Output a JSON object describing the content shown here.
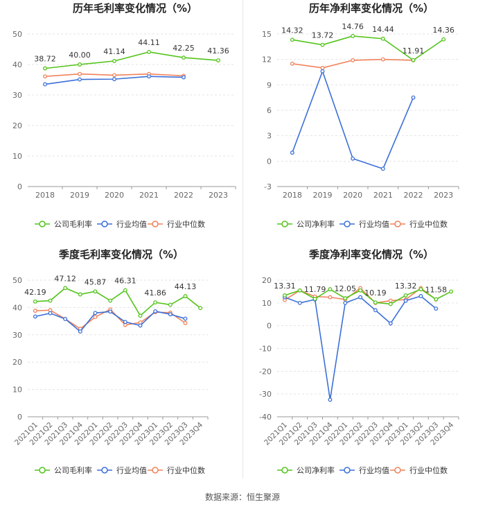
{
  "colors": {
    "company": "#52c41a",
    "industry_avg": "#3b6fd8",
    "industry_median": "#f0825a",
    "grid": "#e3e3e3",
    "axis_text": "#666666"
  },
  "footer": {
    "source": "数据来源：恒生聚源"
  },
  "chart_data": [
    {
      "type": "line",
      "title": "历年毛利率变化情况（%）",
      "categories": [
        "2018",
        "2019",
        "2020",
        "2021",
        "2022",
        "2023"
      ],
      "rotate_x": false,
      "ylim": [
        0,
        50
      ],
      "yticks": [
        0,
        10,
        20,
        30,
        40,
        50
      ],
      "series": [
        {
          "name": "公司毛利率",
          "key": "company",
          "values": [
            38.72,
            40.0,
            41.14,
            44.11,
            42.25,
            41.36
          ]
        },
        {
          "name": "行业均值",
          "key": "industry_avg",
          "values": [
            33.5,
            35.1,
            35.2,
            36.1,
            35.8,
            null
          ]
        },
        {
          "name": "行业中位数",
          "key": "industry_median",
          "values": [
            36.1,
            36.9,
            36.5,
            36.9,
            36.3,
            null
          ]
        }
      ],
      "data_labels": [
        "38.72",
        "40.00",
        "41.14",
        "44.11",
        "42.25",
        "41.36"
      ],
      "legend": [
        "公司毛利率",
        "行业均值",
        "行业中位数"
      ]
    },
    {
      "type": "line",
      "title": "历年净利率变化情况（%）",
      "categories": [
        "2018",
        "2019",
        "2020",
        "2021",
        "2022",
        "2023"
      ],
      "rotate_x": false,
      "ylim": [
        -3,
        15
      ],
      "yticks": [
        -3,
        0,
        3,
        6,
        9,
        12,
        15
      ],
      "series": [
        {
          "name": "公司净利率",
          "key": "company",
          "values": [
            14.32,
            13.72,
            14.76,
            14.44,
            11.91,
            14.36
          ]
        },
        {
          "name": "行业均值",
          "key": "industry_avg",
          "values": [
            1.0,
            10.6,
            0.3,
            -0.9,
            7.5,
            null
          ]
        },
        {
          "name": "行业中位数",
          "key": "industry_median",
          "values": [
            11.5,
            11.0,
            11.9,
            12.0,
            11.9,
            null
          ]
        }
      ],
      "data_labels": [
        "14.32",
        "13.72",
        "14.76",
        "14.44",
        "11.91",
        "14.36"
      ],
      "legend": [
        "公司净利率",
        "行业均值",
        "行业中位数"
      ]
    },
    {
      "type": "line",
      "title": "季度毛利率变化情况（%）",
      "categories": [
        "2021Q1",
        "2021Q2",
        "2021Q3",
        "2021Q4",
        "2022Q1",
        "2022Q2",
        "2022Q3",
        "2022Q4",
        "2023Q1",
        "2023Q2",
        "2023Q3",
        "2023Q4"
      ],
      "rotate_x": true,
      "ylim": [
        0,
        50
      ],
      "yticks": [
        0,
        10,
        20,
        30,
        40,
        50
      ],
      "series": [
        {
          "name": "公司毛利率",
          "key": "company",
          "values": [
            42.19,
            42.5,
            47.12,
            44.8,
            45.87,
            42.5,
            46.31,
            37.0,
            41.86,
            41.0,
            44.13,
            39.8
          ]
        },
        {
          "name": "行业均值",
          "key": "industry_avg",
          "values": [
            36.7,
            37.9,
            35.8,
            31.2,
            38.0,
            38.5,
            34.7,
            33.4,
            38.6,
            37.5,
            35.9,
            null
          ]
        },
        {
          "name": "行业中位数",
          "key": "industry_median",
          "values": [
            38.8,
            39.0,
            35.8,
            32.2,
            36.5,
            39.3,
            33.6,
            34.5,
            38.3,
            38.1,
            34.3,
            null
          ]
        }
      ],
      "data_labels": [
        "42.19",
        "",
        "47.12",
        "",
        "45.87",
        "",
        "46.31",
        "",
        "41.86",
        "",
        "44.13",
        ""
      ],
      "legend": [
        "公司毛利率",
        "行业均值",
        "行业中位数"
      ]
    },
    {
      "type": "line",
      "title": "季度净利率变化情况（%）",
      "categories": [
        "2021Q1",
        "2021Q2",
        "2021Q3",
        "2021Q4",
        "2022Q1",
        "2022Q2",
        "2022Q3",
        "2022Q4",
        "2023Q1",
        "2023Q2",
        "2023Q3",
        "2023Q4"
      ],
      "rotate_x": true,
      "ylim": [
        -40,
        20
      ],
      "yticks": [
        -40,
        -30,
        -20,
        -10,
        0,
        10,
        20
      ],
      "series": [
        {
          "name": "公司净利率",
          "key": "company",
          "values": [
            13.31,
            15.5,
            11.79,
            16.0,
            12.05,
            15.5,
            10.19,
            9.5,
            13.32,
            16.0,
            11.58,
            15.0
          ]
        },
        {
          "name": "行业均值",
          "key": "industry_avg",
          "values": [
            12.5,
            10.0,
            11.5,
            -32.5,
            10.0,
            12.5,
            6.8,
            1.0,
            11.0,
            13.0,
            7.5,
            null
          ]
        },
        {
          "name": "行业中位数",
          "key": "industry_median",
          "values": [
            11.3,
            15.5,
            12.8,
            12.5,
            11.5,
            16.5,
            10.0,
            11.0,
            11.5,
            16.5,
            11.5,
            null
          ]
        }
      ],
      "data_labels": [
        "13.31",
        "",
        "11.79",
        "",
        "12.05",
        "",
        "10.19",
        "",
        "13.32",
        "",
        "11.58",
        ""
      ],
      "legend": [
        "公司净利率",
        "行业均值",
        "行业中位数"
      ]
    }
  ]
}
